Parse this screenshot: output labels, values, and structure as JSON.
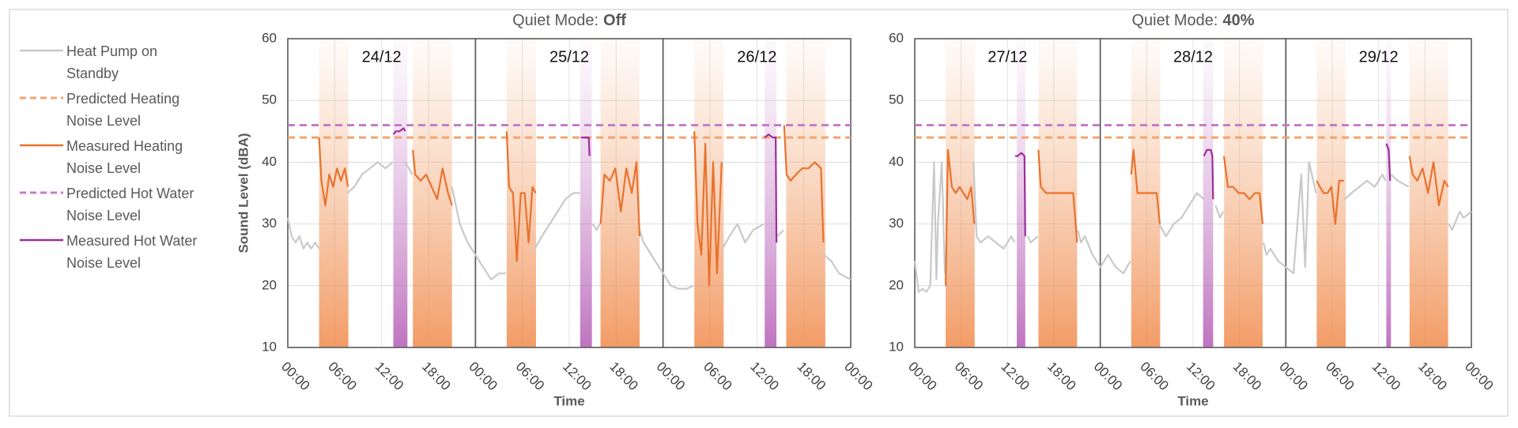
{
  "chart_data": [
    {
      "type": "line",
      "title": "Quiet Mode:",
      "title_emphasis": "Off",
      "ylabel": "Sound Level (dBA)",
      "xlabel": "Time",
      "xlim": [
        0,
        72
      ],
      "ylim": [
        10,
        60
      ],
      "yticks": [
        10,
        20,
        30,
        40,
        50,
        60
      ],
      "xticks": [
        {
          "value": 0,
          "label": "00:00"
        },
        {
          "value": 6,
          "label": "06:00"
        },
        {
          "value": 12,
          "label": "12:00"
        },
        {
          "value": 18,
          "label": "18:00"
        },
        {
          "value": 24,
          "label": "00:00"
        },
        {
          "value": 30,
          "label": "06:00"
        },
        {
          "value": 36,
          "label": "12:00"
        },
        {
          "value": 42,
          "label": "18:00"
        },
        {
          "value": 48,
          "label": "00:00"
        },
        {
          "value": 54,
          "label": "06:00"
        },
        {
          "value": 60,
          "label": "12:00"
        },
        {
          "value": 66,
          "label": "18:00"
        },
        {
          "value": 72,
          "label": "00:00"
        }
      ],
      "grid": true,
      "days": [
        {
          "label": "24/12",
          "start": 0,
          "end": 24
        },
        {
          "label": "25/12",
          "start": 24,
          "end": 48
        },
        {
          "label": "26/12",
          "start": 48,
          "end": 72
        }
      ],
      "heating_periods": [
        [
          4,
          7.75
        ],
        [
          16,
          21
        ],
        [
          28,
          31.75
        ],
        [
          40,
          45
        ],
        [
          52,
          55.75
        ],
        [
          63.75,
          68.75
        ]
      ],
      "hot_water_periods": [
        [
          13.5,
          15.3
        ],
        [
          37.4,
          38.9
        ],
        [
          61,
          62.5
        ]
      ],
      "series": [
        {
          "name": "Heat Pump on Standby",
          "color": "#c9c9c9",
          "dash": false,
          "x": [
            0,
            0.5,
            1,
            1.5,
            2,
            2.5,
            3,
            3.5,
            4,
            4.1,
            7.6,
            8.5,
            9.5,
            10.5,
            11.5,
            12.5,
            13.4,
            13.5,
            15,
            15.5,
            15.9,
            16,
            21,
            21.5,
            22,
            23,
            24,
            25,
            26,
            27,
            27.9,
            28,
            31.6,
            32.5,
            33.5,
            34.5,
            35.5,
            36.5,
            37.4,
            37.5,
            39,
            39.5,
            39.9,
            40,
            45,
            45.5,
            46,
            47,
            48,
            49,
            50,
            51,
            51.9,
            52,
            55.6,
            56.5,
            57.5,
            58.5,
            59.5,
            60.9,
            61,
            62.6,
            63.4,
            63.5,
            68.6,
            69.5,
            70.5,
            72
          ],
          "values": [
            31,
            28,
            27,
            28,
            26,
            27,
            26,
            27,
            26,
            null,
            35,
            36,
            38,
            39,
            40,
            39,
            40,
            null,
            40,
            39,
            38,
            null,
            36,
            33,
            30,
            27,
            25,
            23,
            21,
            22,
            22,
            null,
            26,
            28,
            30,
            32,
            34,
            35,
            35,
            null,
            30,
            29,
            30,
            null,
            29,
            27,
            26,
            24,
            22,
            20,
            19.5,
            19.5,
            20,
            null,
            26,
            28,
            30,
            27,
            29,
            30,
            null,
            28,
            29,
            null,
            25,
            24,
            22,
            21
          ]
        },
        {
          "name": "Predicted Heating Noise Level",
          "color": "#f4a36e",
          "dash": true,
          "x": [
            0,
            72
          ],
          "values": [
            44,
            44
          ]
        },
        {
          "name": "Measured Heating Noise Level",
          "color": "#e9722e",
          "dash": false,
          "x": [
            4,
            4.3,
            4.8,
            5.3,
            5.8,
            6.3,
            6.8,
            7.3,
            7.7,
            8,
            16,
            16.3,
            17,
            17.7,
            18.4,
            19.1,
            19.8,
            20.5,
            21,
            21.5,
            28,
            28.3,
            28.8,
            29.3,
            29.8,
            30.3,
            30.8,
            31.3,
            31.7,
            32,
            40,
            40.5,
            41.2,
            41.9,
            42.6,
            43.3,
            44,
            44.6,
            45,
            45.5,
            52,
            52.4,
            52.9,
            53.4,
            53.9,
            54.4,
            54.9,
            55.5,
            56,
            63.5,
            63.8,
            64.3,
            65,
            65.8,
            66.6,
            67.4,
            68.2,
            68.5
          ],
          "values": [
            44,
            37,
            33,
            38,
            36,
            39,
            37,
            39,
            36,
            null,
            42,
            38,
            37,
            38,
            36,
            34,
            39,
            35,
            33,
            null,
            45,
            36,
            35,
            24,
            35,
            35,
            27,
            36,
            35,
            null,
            30,
            38,
            37,
            39,
            32,
            39,
            35,
            40,
            28,
            null,
            45,
            30,
            25,
            43,
            20,
            40,
            22,
            40,
            null,
            46,
            38,
            37,
            38,
            39,
            39,
            40,
            39,
            27
          ]
        },
        {
          "name": "Predicted Hot Water Noise Level",
          "color": "#c77cc9",
          "dash": true,
          "x": [
            0,
            72
          ],
          "values": [
            46,
            46
          ]
        },
        {
          "name": "Measured Hot Water Noise Level",
          "color": "#9a2f98",
          "dash": false,
          "x": [
            13.5,
            13.8,
            14.3,
            14.8,
            15,
            15.2,
            37.5,
            38,
            38.5,
            38.6,
            38.8,
            61,
            61.5,
            62,
            62.4,
            62.5
          ],
          "values": [
            44.5,
            45,
            45,
            45.5,
            45,
            null,
            44,
            44,
            44,
            41,
            null,
            44,
            44.5,
            44,
            44,
            27
          ]
        }
      ]
    },
    {
      "type": "line",
      "title": "Quiet Mode:",
      "title_emphasis": "40%",
      "xlabel": "Time",
      "xlim": [
        0,
        72
      ],
      "ylim": [
        10,
        60
      ],
      "yticks": [
        10,
        20,
        30,
        40,
        50,
        60
      ],
      "xticks": [
        {
          "value": 0,
          "label": "00:00"
        },
        {
          "value": 6,
          "label": "06:00"
        },
        {
          "value": 12,
          "label": "12:00"
        },
        {
          "value": 18,
          "label": "18:00"
        },
        {
          "value": 24,
          "label": "00:00"
        },
        {
          "value": 30,
          "label": "06:00"
        },
        {
          "value": 36,
          "label": "12:00"
        },
        {
          "value": 42,
          "label": "18:00"
        },
        {
          "value": 48,
          "label": "00:00"
        },
        {
          "value": 54,
          "label": "06:00"
        },
        {
          "value": 60,
          "label": "12:00"
        },
        {
          "value": 66,
          "label": "18:00"
        },
        {
          "value": 72,
          "label": "00:00"
        }
      ],
      "grid": true,
      "days": [
        {
          "label": "27/12",
          "start": 0,
          "end": 24
        },
        {
          "label": "28/12",
          "start": 24,
          "end": 48
        },
        {
          "label": "29/12",
          "start": 48,
          "end": 72
        }
      ],
      "heating_periods": [
        [
          4,
          7.75
        ],
        [
          16,
          21
        ],
        [
          28,
          31.75
        ],
        [
          40,
          45
        ],
        [
          52,
          55.75
        ],
        [
          64,
          69
        ]
      ],
      "hot_water_periods": [
        [
          13.2,
          14.3
        ],
        [
          37.3,
          38.6
        ],
        [
          61,
          61.6
        ]
      ],
      "series": [
        {
          "color": "#c9c9c9",
          "dash": false,
          "x": [
            0,
            0.5,
            1,
            1.5,
            2,
            2.5,
            2.8,
            3,
            3.5,
            3.9,
            4,
            7.6,
            8,
            8.5,
            9.5,
            10.5,
            11.5,
            12.5,
            12.9,
            13,
            14.6,
            15,
            15.9,
            16,
            21.1,
            21.5,
            22,
            23,
            24,
            25,
            26,
            27,
            27.9,
            28,
            31.6,
            32.5,
            33.5,
            34.5,
            35.5,
            36.5,
            37.4,
            37.5,
            38.9,
            39.5,
            39.9,
            40,
            45.1,
            45.5,
            46,
            47,
            48,
            49,
            50,
            50.5,
            51,
            51.9,
            52,
            55.6,
            56.5,
            57.5,
            58.5,
            59.5,
            60.5,
            60.9,
            61,
            61.6,
            62.5,
            63.9,
            64,
            69.1,
            69.5,
            70.5,
            71,
            72
          ],
          "values": [
            24,
            19,
            19.5,
            19,
            20,
            40,
            21,
            30,
            40,
            22,
            null,
            40,
            28,
            27,
            28,
            27,
            26,
            28,
            27,
            null,
            28,
            27,
            28,
            null,
            29,
            27,
            28,
            25,
            23,
            25,
            23,
            22,
            24,
            null,
            30,
            28,
            30,
            31,
            33,
            35,
            34,
            null,
            33,
            31,
            32,
            null,
            27,
            25,
            26,
            24,
            23,
            22,
            38,
            23,
            40,
            35,
            null,
            34,
            35,
            36,
            37,
            36,
            38,
            37,
            null,
            38,
            37,
            36,
            null,
            30,
            29,
            32,
            31,
            32
          ]
        },
        {
          "color": "#f4a36e",
          "dash": true,
          "x": [
            0,
            72
          ],
          "values": [
            44,
            44
          ]
        },
        {
          "color": "#e9722e",
          "dash": false,
          "x": [
            4,
            4.3,
            4.8,
            5.3,
            5.8,
            6.3,
            6.8,
            7.3,
            7.7,
            8,
            16,
            16.3,
            17,
            17.7,
            18.4,
            19.1,
            19.8,
            20.5,
            21,
            21.5,
            28,
            28.3,
            28.8,
            29.3,
            29.8,
            30.3,
            30.8,
            31.3,
            31.7,
            32,
            40,
            40.5,
            41.2,
            41.9,
            42.6,
            43.3,
            44,
            44.6,
            45,
            45.5,
            52,
            52.4,
            52.9,
            53.4,
            53.9,
            54.4,
            54.9,
            55.5,
            56,
            64,
            64.4,
            65,
            65.7,
            66.4,
            67.1,
            67.8,
            68.5,
            69
          ],
          "values": [
            20,
            42,
            36,
            35,
            36,
            35,
            34,
            36,
            30,
            null,
            42,
            36,
            35,
            35,
            35,
            35,
            35,
            35,
            27,
            null,
            38,
            42,
            35,
            35,
            35,
            35,
            35,
            35,
            30,
            null,
            41,
            36,
            36,
            35,
            35,
            34,
            35,
            35,
            30,
            null,
            37,
            36,
            35,
            35,
            36,
            30,
            37,
            37,
            null,
            41,
            38,
            37,
            39,
            35,
            40,
            33,
            37,
            36
          ]
        },
        {
          "color": "#c77cc9",
          "dash": true,
          "x": [
            0,
            72
          ],
          "values": [
            46,
            46
          ]
        },
        {
          "color": "#9a2f98",
          "dash": false,
          "x": [
            13,
            13.3,
            13.8,
            14.2,
            14.3,
            14.5,
            37.4,
            37.8,
            38.3,
            38.5,
            38.6,
            38.8,
            61,
            61.3,
            61.5,
            61.6
          ],
          "values": [
            41,
            41,
            41.5,
            41,
            28,
            null,
            41,
            42,
            42,
            41,
            34,
            null,
            43,
            42,
            37,
            null
          ]
        }
      ]
    }
  ]
}
